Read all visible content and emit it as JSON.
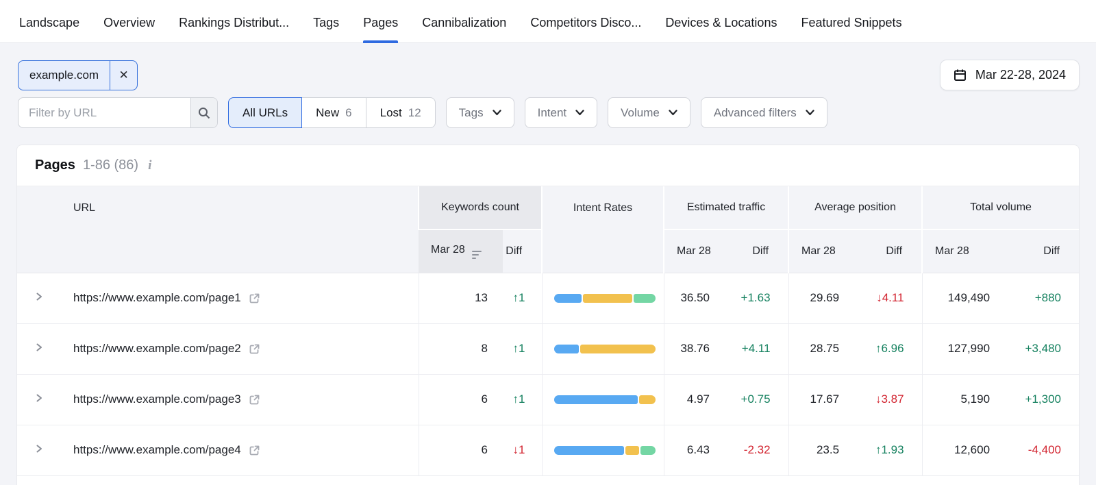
{
  "nav": {
    "tabs": [
      {
        "label": "Landscape",
        "active": false
      },
      {
        "label": "Overview",
        "active": false
      },
      {
        "label": "Rankings Distribut...",
        "active": false
      },
      {
        "label": "Tags",
        "active": false
      },
      {
        "label": "Pages",
        "active": true
      },
      {
        "label": "Cannibalization",
        "active": false
      },
      {
        "label": "Competitors Disco...",
        "active": false
      },
      {
        "label": "Devices & Locations",
        "active": false
      },
      {
        "label": "Featured Snippets",
        "active": false
      }
    ]
  },
  "filters": {
    "chip": {
      "label": "example.com",
      "remove_label": "✕"
    },
    "date_range": "Mar 22-28, 2024",
    "url_filter_placeholder": "Filter by URL",
    "segments": [
      {
        "label": "All URLs",
        "count": "",
        "active": true
      },
      {
        "label": "New",
        "count": "6",
        "active": false
      },
      {
        "label": "Lost",
        "count": "12",
        "active": false
      }
    ],
    "dropdowns": [
      "Tags",
      "Intent",
      "Volume",
      "Advanced filters"
    ]
  },
  "colors": {
    "accent_blue": "#2E6AE0",
    "positive_green": "#15815F",
    "negative_red": "#D2232F",
    "bar": {
      "blue": "#58A9F2",
      "yellow": "#F2C14E",
      "green": "#74D6A4"
    }
  },
  "table": {
    "title": "Pages",
    "range_label": "1-86 (86)",
    "info_icon": "i",
    "col_url": "URL",
    "groups": [
      {
        "label": "Keywords count",
        "sub_date": "Mar 28",
        "sub_diff": "Diff",
        "sorted": true
      },
      {
        "label": "Intent Rates"
      },
      {
        "label": "Estimated traffic",
        "sub_date": "Mar 28",
        "sub_diff": "Diff"
      },
      {
        "label": "Average position",
        "sub_date": "Mar 28",
        "sub_diff": "Diff"
      },
      {
        "label": "Total volume",
        "sub_date": "Mar 28",
        "sub_diff": "Diff"
      }
    ],
    "rows": [
      {
        "url": "https://www.example.com/page1",
        "keywords": "13",
        "keywords_diff": {
          "arrow": "↑",
          "text": "1",
          "sentiment": "pos"
        },
        "intent_bar": [
          {
            "color": "blue",
            "pct": 28
          },
          {
            "color": "yellow",
            "pct": 50
          },
          {
            "color": "green",
            "pct": 22
          }
        ],
        "traffic": "36.50",
        "traffic_diff": {
          "arrow": "",
          "text": "+1.63",
          "sentiment": "pos"
        },
        "position": "29.69",
        "position_diff": {
          "arrow": "↓",
          "text": "4.11",
          "sentiment": "neg"
        },
        "volume": "149,490",
        "volume_diff": {
          "arrow": "",
          "text": "+880",
          "sentiment": "pos"
        }
      },
      {
        "url": "https://www.example.com/page2",
        "keywords": "8",
        "keywords_diff": {
          "arrow": "↑",
          "text": "1",
          "sentiment": "pos"
        },
        "intent_bar": [
          {
            "color": "blue",
            "pct": 25
          },
          {
            "color": "yellow",
            "pct": 75
          }
        ],
        "traffic": "38.76",
        "traffic_diff": {
          "arrow": "",
          "text": "+4.11",
          "sentiment": "pos"
        },
        "position": "28.75",
        "position_diff": {
          "arrow": "↑",
          "text": "6.96",
          "sentiment": "pos"
        },
        "volume": "127,990",
        "volume_diff": {
          "arrow": "",
          "text": "+3,480",
          "sentiment": "pos"
        }
      },
      {
        "url": "https://www.example.com/page3",
        "keywords": "6",
        "keywords_diff": {
          "arrow": "↑",
          "text": "1",
          "sentiment": "pos"
        },
        "intent_bar": [
          {
            "color": "blue",
            "pct": 84
          },
          {
            "color": "yellow",
            "pct": 16
          }
        ],
        "traffic": "4.97",
        "traffic_diff": {
          "arrow": "",
          "text": "+0.75",
          "sentiment": "pos"
        },
        "position": "17.67",
        "position_diff": {
          "arrow": "↓",
          "text": "3.87",
          "sentiment": "neg"
        },
        "volume": "5,190",
        "volume_diff": {
          "arrow": "",
          "text": "+1,300",
          "sentiment": "pos"
        }
      },
      {
        "url": "https://www.example.com/page4",
        "keywords": "6",
        "keywords_diff": {
          "arrow": "↓",
          "text": "1",
          "sentiment": "neg"
        },
        "intent_bar": [
          {
            "color": "blue",
            "pct": 71
          },
          {
            "color": "yellow",
            "pct": 14
          },
          {
            "color": "green",
            "pct": 15
          }
        ],
        "traffic": "6.43",
        "traffic_diff": {
          "arrow": "",
          "text": "-2.32",
          "sentiment": "neg"
        },
        "position": "23.5",
        "position_diff": {
          "arrow": "↑",
          "text": "1.93",
          "sentiment": "pos"
        },
        "volume": "12,600",
        "volume_diff": {
          "arrow": "",
          "text": "-4,400",
          "sentiment": "neg"
        }
      }
    ]
  }
}
